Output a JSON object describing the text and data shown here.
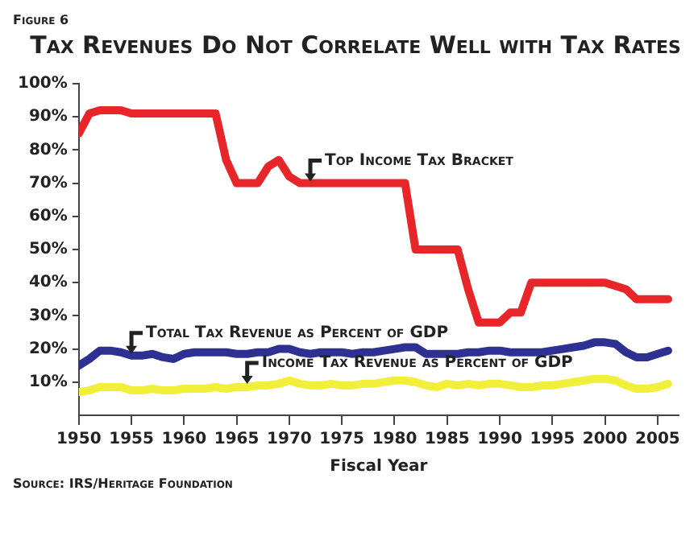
{
  "chart_data": {
    "type": "line",
    "title": "Tax Revenues Do Not Correlate Well with Tax Rates",
    "xlabel": "Fiscal Year",
    "annotations": [
      "Figure 6",
      "Source: IRS/Heritage Foundation",
      {
        "text": "Top Income Tax Bracket",
        "x": 1972,
        "y": 70
      },
      {
        "text": "Total Tax Revenue as Percent of GDP",
        "x": 1955,
        "y": 18
      },
      {
        "text": "Income Tax Revenue as Percent of GDP",
        "x": 1966,
        "y": 9
      }
    ],
    "x": [
      1950,
      1951,
      1952,
      1953,
      1954,
      1955,
      1956,
      1957,
      1958,
      1959,
      1960,
      1961,
      1962,
      1963,
      1964,
      1965,
      1966,
      1967,
      1968,
      1969,
      1970,
      1971,
      1972,
      1973,
      1974,
      1975,
      1976,
      1977,
      1978,
      1979,
      1980,
      1981,
      1982,
      1983,
      1984,
      1985,
      1986,
      1987,
      1988,
      1989,
      1990,
      1991,
      1992,
      1993,
      1994,
      1995,
      1996,
      1997,
      1998,
      1999,
      2000,
      2001,
      2002,
      2003,
      2004,
      2005,
      2006
    ],
    "series": [
      {
        "color": "#e8262a",
        "values": [
          85,
          91,
          92,
          92,
          92,
          91,
          91,
          91,
          91,
          91,
          91,
          91,
          91,
          91,
          77,
          70,
          70,
          70,
          75,
          77,
          72,
          70,
          70,
          70,
          70,
          70,
          70,
          70,
          70,
          70,
          70,
          70,
          50,
          50,
          50,
          50,
          50,
          38,
          28,
          28,
          28,
          31,
          31,
          40,
          40,
          40,
          40,
          40,
          40,
          40,
          40,
          39,
          38,
          35,
          35,
          35,
          35
        ]
      },
      {
        "color": "#2e3192",
        "values": [
          15,
          17,
          19.5,
          19.5,
          19,
          18,
          18,
          18.5,
          17.5,
          17,
          18.5,
          19,
          19,
          19,
          19,
          18.5,
          18.5,
          19,
          19,
          20,
          20,
          19,
          18.5,
          19,
          19,
          19,
          18.5,
          19,
          19,
          19.5,
          20,
          20.5,
          20.5,
          18.5,
          18.5,
          18.5,
          18.5,
          19,
          19,
          19.5,
          19.5,
          19,
          19,
          19,
          19,
          19.5,
          20,
          20.5,
          21,
          22,
          22,
          21.5,
          19,
          17.5,
          17.5,
          18.5,
          19.5
        ]
      },
      {
        "color": "#f2ef3a",
        "values": [
          7,
          7.5,
          8.5,
          8.5,
          8.5,
          7.5,
          7.5,
          8,
          7.5,
          7.5,
          8,
          8,
          8,
          8.5,
          8,
          8.5,
          8.5,
          9,
          9,
          9.5,
          10.5,
          9.5,
          9,
          9,
          9.5,
          9,
          9,
          9.5,
          9.5,
          10,
          10.5,
          10.5,
          10,
          9,
          8.5,
          9.5,
          9,
          9.5,
          9,
          9.5,
          9.5,
          9,
          8.5,
          8.5,
          9,
          9,
          9.5,
          10,
          10.5,
          11,
          11,
          10.5,
          9,
          8,
          8,
          8.5,
          9.5
        ]
      }
    ],
    "xlim": [
      1950,
      2007
    ],
    "xticks": [
      1950,
      1955,
      1960,
      1965,
      1970,
      1975,
      1980,
      1985,
      1990,
      1995,
      2000,
      2005
    ],
    "ylim": [
      0,
      100
    ],
    "yticks": [
      {
        "value": 10,
        "label": "10%"
      },
      {
        "value": 20,
        "label": "20%"
      },
      {
        "value": 30,
        "label": "30%"
      },
      {
        "value": 40,
        "label": "40%"
      },
      {
        "value": 50,
        "label": "50%"
      },
      {
        "value": 60,
        "label": "60%"
      },
      {
        "value": 70,
        "label": "70%"
      },
      {
        "value": 80,
        "label": "80%"
      },
      {
        "value": 90,
        "label": "90%"
      },
      {
        "value": 100,
        "label": "100%"
      }
    ],
    "grid": false,
    "legend": false,
    "marker": "none",
    "line_style": "solid"
  }
}
